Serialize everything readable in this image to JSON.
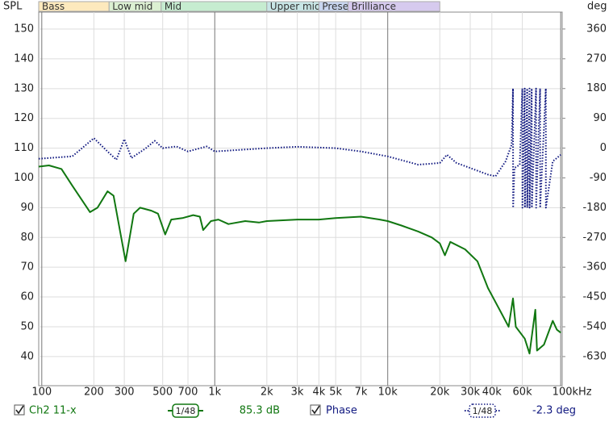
{
  "chart_data": {
    "type": "line",
    "ylabel": "SPL",
    "y2label": "deg",
    "xscale": "log",
    "grid": true,
    "xlim": [
      96,
      102000
    ],
    "ylim": [
      30.2,
      155.7
    ],
    "y2lim": [
      -718,
      411
    ],
    "xticks": [
      100,
      200,
      300,
      500,
      700,
      {
        "value": 1000,
        "label": "1k"
      },
      {
        "value": 2000,
        "label": "2k"
      },
      {
        "value": 3000,
        "label": "3k"
      },
      {
        "value": 4000,
        "label": "4k"
      },
      {
        "value": 5000,
        "label": "5k"
      },
      {
        "value": 7000,
        "label": "7k"
      },
      {
        "value": 10000,
        "label": "10k"
      },
      {
        "value": 20000,
        "label": "20k"
      },
      {
        "value": 30000,
        "label": "30k"
      },
      {
        "value": 40000,
        "label": "40k"
      },
      {
        "value": 60000,
        "label": "60k"
      },
      {
        "value": 100000,
        "label": "100kHz"
      }
    ],
    "yticks": [
      40,
      50,
      60,
      70,
      80,
      90,
      100,
      110,
      120,
      130,
      140,
      150
    ],
    "y2ticks": [
      -630,
      -540,
      -450,
      -360,
      -270,
      -180,
      -90,
      0,
      90,
      180,
      270,
      360
    ],
    "bands": [
      {
        "name": "Bass",
        "start": 96,
        "end": 245,
        "color": "#fde9bd"
      },
      {
        "name": "Low mid",
        "start": 245,
        "end": 490,
        "color": "#dcf0d2"
      },
      {
        "name": "Mid",
        "start": 490,
        "end": 2000,
        "color": "#c6ecd0"
      },
      {
        "name": "Upper mid",
        "start": 2000,
        "end": 4000,
        "color": "#c8e6e6"
      },
      {
        "name": "Prese",
        "start": 4000,
        "end": 5900,
        "color": "#c9d6f0"
      },
      {
        "name": "Brilliance",
        "start": 5900,
        "end": 20000,
        "color": "#d6caee"
      }
    ],
    "series": [
      {
        "name": "Ch2 11-x",
        "color": "#117711",
        "smoothing": "1/48",
        "readout": "85.3 dB",
        "x": [
          96,
          110,
          130,
          150,
          190,
          210,
          240,
          260,
          305,
          340,
          370,
          430,
          470,
          517,
          560,
          650,
          750,
          820,
          857,
          950,
          1050,
          1200,
          1500,
          1800,
          2000,
          3000,
          4000,
          5000,
          7000,
          9000,
          10000,
          12000,
          15000,
          18000,
          20000,
          21400,
          23000,
          28000,
          33000,
          38000,
          45000,
          50000,
          53000,
          55000,
          62000,
          66000,
          71300,
          73000,
          80000,
          90000,
          95000,
          100000
        ],
        "values": [
          103.8,
          104.2,
          103,
          97.4,
          88.5,
          90,
          95.5,
          94,
          72,
          88,
          90,
          89,
          88,
          81,
          86,
          86.5,
          87.5,
          87,
          82.5,
          85.5,
          86,
          84.5,
          85.5,
          85,
          85.5,
          86,
          86,
          86.5,
          87,
          86,
          85.5,
          84,
          82,
          80,
          78,
          74,
          78.5,
          76,
          72,
          63,
          55,
          50,
          59.5,
          50,
          46,
          41,
          55.7,
          42,
          44,
          52,
          49,
          48
        ]
      },
      {
        "name": "Phase",
        "color": "#101880",
        "axis": "y2",
        "smoothing": "1/48",
        "readout": "-2.3 deg",
        "x": [
          96,
          150,
          200,
          240,
          270,
          300,
          330,
          400,
          450,
          500,
          600,
          700,
          900,
          1000,
          2000,
          3000,
          5000,
          7000,
          10000,
          15000,
          20000,
          22000,
          25000,
          30000,
          38000,
          42000,
          48000,
          52000,
          53000,
          53100,
          54000,
          58000,
          60000,
          60100,
          62000,
          62100,
          64000,
          64100,
          66000,
          66100,
          68000,
          68100,
          72000,
          72100,
          76000,
          76100,
          82000,
          82100,
          90000,
          100000
        ],
        "values": [
          -32,
          -25,
          30,
          -10,
          -35,
          27,
          -30,
          0,
          22,
          0,
          5,
          -10,
          5,
          -10,
          0,
          4,
          0,
          -10,
          -25,
          -50,
          -45,
          -20,
          -45,
          -60,
          -80,
          -85,
          -40,
          10,
          180,
          -180,
          -60,
          -50,
          180,
          -180,
          180,
          -180,
          180,
          -180,
          180,
          -180,
          180,
          -180,
          180,
          -180,
          180,
          -180,
          180,
          -180,
          -40,
          -20
        ]
      }
    ]
  }
}
